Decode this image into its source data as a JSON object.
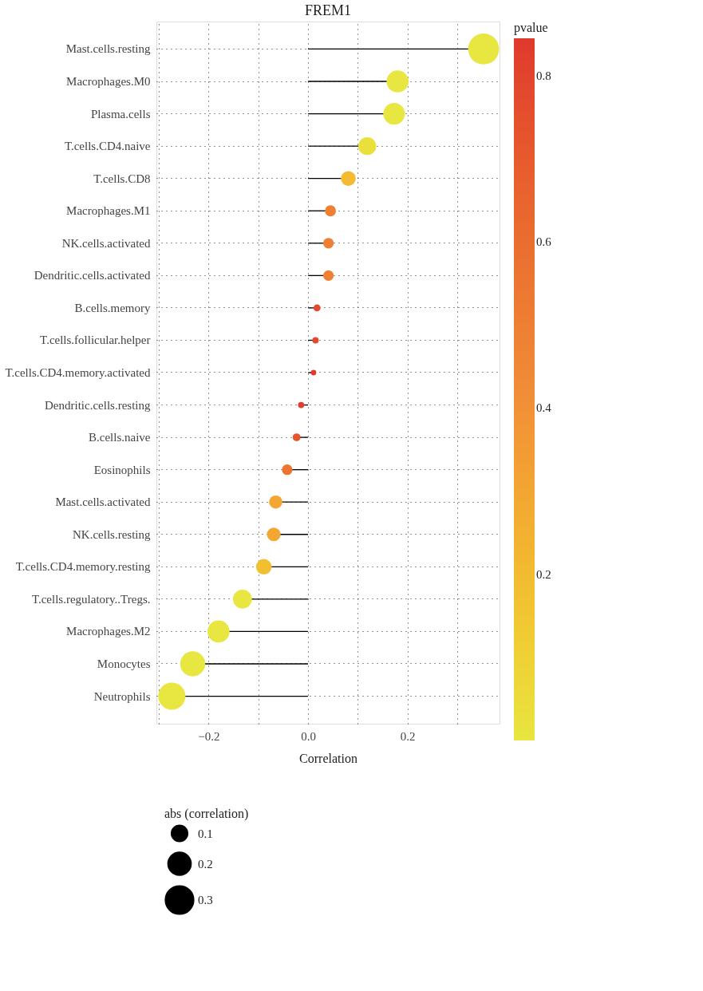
{
  "chart_data": {
    "type": "lollipop",
    "title": "FREM1",
    "xlabel": "Correlation",
    "clabel": "pvalue",
    "legend_title": "abs (correlation)",
    "categories": [
      "Mast.cells.resting",
      "Macrophages.M0",
      "Plasma.cells",
      "T.cells.CD4.naive",
      "T.cells.CD8",
      "Macrophages.M1",
      "NK.cells.activated",
      "Dendritic.cells.activated",
      "B.cells.memory",
      "T.cells.follicular.helper",
      "T.cells.CD4.memory.activated",
      "Dendritic.cells.resting",
      "B.cells.naive",
      "Eosinophils",
      "Mast.cells.activated",
      "NK.cells.resting",
      "T.cells.CD4.memory.resting",
      "T.cells.regulatory..Tregs.",
      "Macrophages.M2",
      "Monocytes",
      "Neutrophils"
    ],
    "values": [
      0.353,
      0.18,
      0.173,
      0.119,
      0.081,
      0.045,
      0.041,
      0.041,
      0.018,
      0.015,
      0.011,
      -0.014,
      -0.023,
      -0.042,
      -0.065,
      -0.069,
      -0.089,
      -0.132,
      -0.18,
      -0.232,
      -0.274
    ],
    "cvalues": [
      0.0,
      0.0,
      0.0,
      0.03,
      0.2,
      0.5,
      0.5,
      0.5,
      0.78,
      0.78,
      0.84,
      0.82,
      0.72,
      0.55,
      0.3,
      0.3,
      0.18,
      0.0,
      0.0,
      0.0,
      0.0
    ],
    "sizes": [
      0.353,
      0.18,
      0.173,
      0.119,
      0.081,
      0.045,
      0.041,
      0.041,
      0.018,
      0.015,
      0.011,
      0.014,
      0.023,
      0.042,
      0.065,
      0.069,
      0.089,
      0.132,
      0.18,
      0.232,
      0.274
    ],
    "size_legend": [
      0.1,
      0.2,
      0.3
    ],
    "clim": [
      0.0,
      0.845
    ],
    "cticks": [
      0.2,
      0.4,
      0.6,
      0.8
    ],
    "xlim": [
      -0.305,
      0.385
    ],
    "xticks": [
      {
        "value": -0.3,
        "label": null
      },
      {
        "value": -0.2,
        "label": "−0.2"
      },
      {
        "value": -0.1,
        "label": null
      },
      {
        "value": 0.0,
        "label": "0.0"
      },
      {
        "value": 0.1,
        "label": null
      },
      {
        "value": 0.2,
        "label": "0.2"
      },
      {
        "value": 0.3,
        "label": null
      }
    ],
    "grid": true,
    "marker": "circle",
    "orientation": "horizontal"
  }
}
